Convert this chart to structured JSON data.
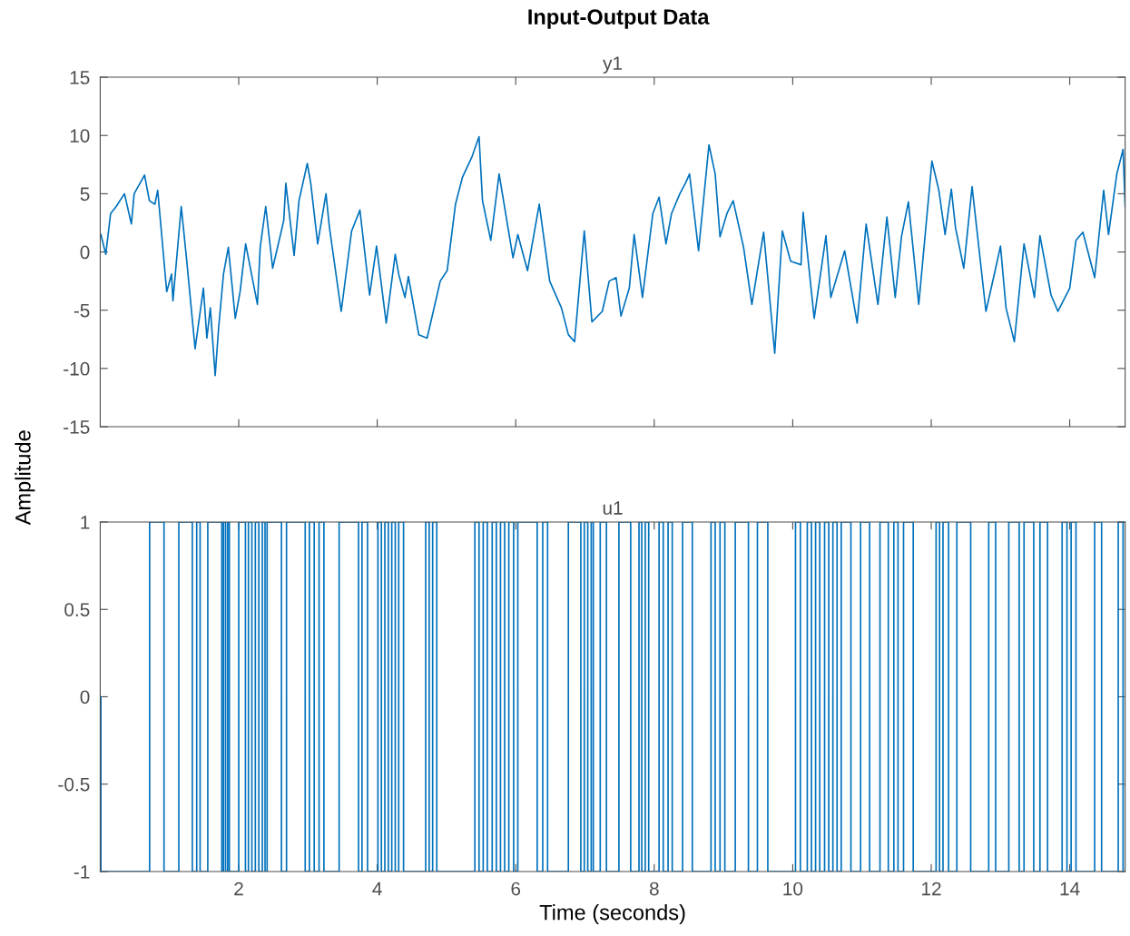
{
  "chart_data": [
    {
      "type": "line",
      "title": "Input-Output Data",
      "subtitle": "y1",
      "ylabel": "Amplitude",
      "color": "#0072bd",
      "x": [
        0.01,
        0.08,
        0.15,
        0.23,
        0.35,
        0.45,
        0.49,
        0.64,
        0.71,
        0.79,
        0.83,
        0.96,
        1.03,
        1.05,
        1.17,
        1.25,
        1.37,
        1.49,
        1.54,
        1.59,
        1.66,
        1.71,
        1.78,
        1.85,
        1.95,
        2.02,
        2.1,
        2.27,
        2.31,
        2.39,
        2.49,
        2.65,
        2.68,
        2.8,
        2.87,
        2.99,
        3.04,
        3.14,
        3.26,
        3.31,
        3.48,
        3.63,
        3.75,
        3.89,
        3.99,
        4.13,
        4.26,
        4.31,
        4.4,
        4.45,
        4.6,
        4.72,
        4.91,
        5.01,
        5.13,
        5.23,
        5.37,
        5.47,
        5.52,
        5.64,
        5.76,
        5.96,
        6.03,
        6.17,
        6.34,
        6.49,
        6.66,
        6.76,
        6.85,
        6.99,
        7.1,
        7.25,
        7.35,
        7.45,
        7.52,
        7.64,
        7.71,
        7.83,
        7.98,
        8.07,
        8.17,
        8.25,
        8.37,
        8.45,
        8.51,
        8.64,
        8.79,
        8.88,
        8.95,
        9.05,
        9.14,
        9.29,
        9.41,
        9.58,
        9.74,
        9.85,
        9.97,
        10.12,
        10.15,
        10.31,
        10.48,
        10.55,
        10.75,
        10.93,
        11.06,
        11.23,
        11.36,
        11.48,
        11.57,
        11.67,
        11.82,
        12.01,
        12.11,
        12.2,
        12.29,
        12.35,
        12.47,
        12.59,
        12.79,
        12.93,
        13.0,
        13.08,
        13.2,
        13.34,
        13.49,
        13.57,
        13.73,
        13.83,
        14.0,
        14.09,
        14.19,
        14.36,
        14.49,
        14.56,
        14.68,
        14.77,
        14.8
      ],
      "values": [
        1.5,
        -0.2,
        3.3,
        3.9,
        5.0,
        2.4,
        5.0,
        6.6,
        4.4,
        4.1,
        5.3,
        -3.4,
        -1.9,
        -4.2,
        3.9,
        -0.8,
        -8.3,
        -3.1,
        -7.4,
        -4.8,
        -10.6,
        -6.5,
        -1.9,
        0.4,
        -5.7,
        -3.4,
        0.7,
        -4.5,
        0.4,
        3.9,
        -1.4,
        2.7,
        5.9,
        -0.3,
        4.4,
        7.6,
        5.9,
        0.7,
        5.0,
        2.1,
        -5.1,
        1.8,
        3.6,
        -3.7,
        0.5,
        -6.1,
        -0.2,
        -1.9,
        -3.9,
        -2.1,
        -7.1,
        -7.4,
        -2.5,
        -1.6,
        4.1,
        6.4,
        8.2,
        9.9,
        4.4,
        1.0,
        6.7,
        -0.5,
        1.5,
        -1.6,
        4.1,
        -2.5,
        -4.8,
        -7.1,
        -7.7,
        1.8,
        -6.0,
        -5.1,
        -2.5,
        -2.2,
        -5.5,
        -3.1,
        1.5,
        -3.9,
        3.3,
        4.7,
        0.7,
        3.3,
        5.0,
        5.9,
        6.7,
        0.1,
        9.2,
        6.7,
        1.3,
        3.3,
        4.4,
        0.4,
        -4.5,
        1.7,
        -8.7,
        1.8,
        -0.8,
        -1.1,
        3.4,
        -5.7,
        1.4,
        -3.9,
        0.1,
        -6.1,
        2.4,
        -4.5,
        3.0,
        -3.9,
        1.3,
        4.3,
        -4.5,
        7.8,
        5.3,
        1.5,
        5.4,
        2.1,
        -1.4,
        5.6,
        -5.1,
        -1.4,
        0.5,
        -4.8,
        -7.7,
        0.7,
        -3.9,
        1.4,
        -3.7,
        -5.1,
        -3.1,
        1.0,
        1.7,
        -2.2,
        5.3,
        1.5,
        6.7,
        8.8,
        3.9
      ],
      "xlim": [
        0,
        14.8
      ],
      "xticks": [
        2,
        4,
        6,
        8,
        10,
        12,
        14
      ],
      "ylim": [
        -15,
        15
      ],
      "yticks": [
        -15,
        -10,
        -5,
        0,
        5,
        10,
        15
      ],
      "tick_labels": "y",
      "grid": false,
      "legend": false
    },
    {
      "type": "step",
      "title": "u1",
      "xlabel": "Time (seconds)",
      "color": "#0072bd",
      "x": [
        0,
        0.01,
        0.713,
        0.921,
        1.135,
        1.33,
        1.393,
        1.442,
        1.553,
        1.756,
        1.78,
        1.81,
        1.84,
        1.864,
        2.0,
        2.097,
        2.14,
        2.19,
        2.24,
        2.29,
        2.34,
        2.38,
        2.41,
        2.617,
        2.69,
        2.96,
        3.02,
        3.09,
        3.16,
        3.23,
        3.45,
        3.73,
        3.78,
        3.86,
        4.01,
        4.06,
        4.11,
        4.16,
        4.21,
        4.26,
        4.31,
        4.38,
        4.7,
        4.75,
        4.8,
        4.86,
        5.41,
        5.47,
        5.53,
        5.59,
        5.66,
        5.72,
        5.78,
        5.84,
        5.9,
        5.97,
        6.03,
        6.31,
        6.39,
        6.46,
        6.76,
        6.94,
        6.99,
        7.04,
        7.09,
        7.12,
        7.22,
        7.31,
        7.49,
        7.66,
        7.78,
        7.82,
        7.87,
        7.92,
        8.07,
        8.13,
        8.2,
        8.26,
        8.41,
        8.55,
        8.82,
        8.88,
        8.95,
        9.02,
        9.17,
        9.36,
        9.49,
        9.64,
        10.04,
        10.11,
        10.21,
        10.27,
        10.33,
        10.39,
        10.46,
        10.52,
        10.58,
        10.64,
        10.7,
        10.84,
        10.98,
        11.11,
        11.26,
        11.38,
        11.46,
        11.52,
        11.6,
        11.74,
        12.07,
        12.12,
        12.17,
        12.25,
        12.37,
        12.57,
        12.83,
        12.93,
        13.12,
        13.27,
        13.34,
        13.48,
        13.57,
        13.68,
        13.89,
        13.96,
        14.02,
        14.09,
        14.36,
        14.46,
        14.7,
        14.77,
        14.8
      ],
      "values": [
        0,
        -1,
        1,
        -1,
        1,
        -1,
        1,
        -1,
        1,
        -1,
        1,
        -1,
        1,
        -1,
        1,
        -1,
        1,
        -1,
        1,
        -1,
        1,
        -1,
        1,
        -1,
        1,
        -1,
        1,
        -1,
        1,
        -1,
        1,
        -1,
        1,
        -1,
        1,
        -1,
        1,
        -1,
        1,
        -1,
        1,
        -1,
        1,
        -1,
        1,
        -1,
        1,
        -1,
        1,
        -1,
        1,
        -1,
        1,
        -1,
        1,
        -1,
        1,
        -1,
        1,
        -1,
        1,
        -1,
        1,
        -1,
        1,
        -1,
        1,
        -1,
        1,
        -1,
        1,
        -1,
        1,
        -1,
        1,
        -1,
        1,
        -1,
        1,
        -1,
        1,
        -1,
        1,
        -1,
        1,
        -1,
        1,
        -1,
        1,
        -1,
        1,
        -1,
        1,
        -1,
        1,
        -1,
        1,
        -1,
        1,
        -1,
        1,
        -1,
        1,
        -1,
        1,
        -1,
        1,
        -1,
        1,
        -1,
        1,
        -1,
        1,
        -1,
        1,
        -1,
        1,
        -1,
        1,
        -1,
        1,
        -1,
        1,
        -1,
        1,
        -1,
        1,
        -1,
        1,
        -1,
        -1
      ],
      "xlim": [
        0,
        14.8
      ],
      "xticks": [
        2,
        4,
        6,
        8,
        10,
        12,
        14
      ],
      "ylim": [
        -1,
        1
      ],
      "yticks": [
        -1,
        -0.5,
        0,
        0.5,
        1
      ],
      "grid": false,
      "legend": false
    }
  ]
}
